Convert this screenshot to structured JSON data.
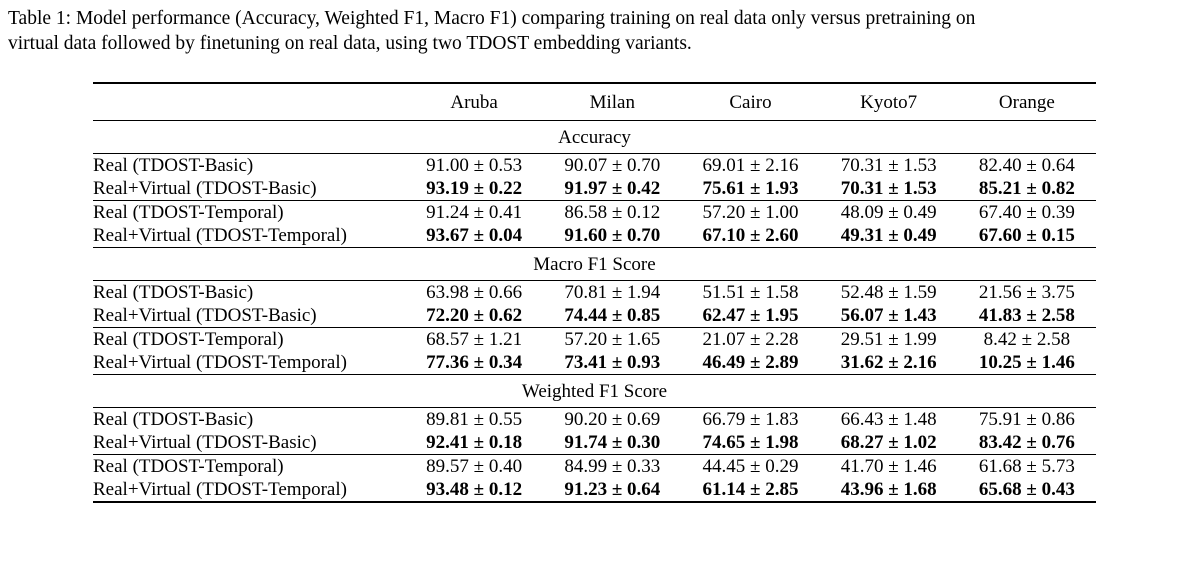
{
  "caption": {
    "line1": "Table 1: Model performance (Accuracy, Weighted F1, Macro F1) comparing training on real data only versus pretraining on",
    "line2": "virtual data followed by finetuning on real data, using two TDOST embedding variants."
  },
  "columns": [
    "Aruba",
    "Milan",
    "Cairo",
    "Kyoto7",
    "Orange"
  ],
  "sections": [
    {
      "title": "Accuracy",
      "groups": [
        [
          {
            "label": "Real (TDOST-Basic)",
            "values": [
              "91.00 ± 0.53",
              "90.07 ± 0.70",
              "69.01 ± 2.16",
              "70.31 ± 1.53",
              "82.40 ± 0.64"
            ]
          },
          {
            "label": "Real+Virtual (TDOST-Basic)",
            "values": [
              "93.19 ± 0.22",
              "91.97 ± 0.42",
              "75.61 ± 1.93",
              "70.31 ± 1.53",
              "85.21 ± 0.82"
            ]
          }
        ],
        [
          {
            "label": "Real (TDOST-Temporal)",
            "values": [
              "91.24 ± 0.41",
              "86.58 ± 0.12",
              "57.20 ± 1.00",
              "48.09 ± 0.49",
              "67.40 ± 0.39"
            ]
          },
          {
            "label": "Real+Virtual (TDOST-Temporal)",
            "values": [
              "93.67 ± 0.04",
              "91.60 ± 0.70",
              "67.10 ± 2.60",
              "49.31 ± 0.49",
              "67.60 ± 0.15"
            ]
          }
        ]
      ]
    },
    {
      "title": "Macro F1 Score",
      "groups": [
        [
          {
            "label": "Real (TDOST-Basic)",
            "values": [
              "63.98 ± 0.66",
              "70.81 ± 1.94",
              "51.51 ± 1.58",
              "52.48 ± 1.59",
              "21.56 ± 3.75"
            ]
          },
          {
            "label": "Real+Virtual (TDOST-Basic)",
            "values": [
              "72.20 ± 0.62",
              "74.44 ± 0.85",
              "62.47 ± 1.95",
              "56.07 ± 1.43",
              "41.83 ± 2.58"
            ]
          }
        ],
        [
          {
            "label": "Real (TDOST-Temporal)",
            "values": [
              "68.57 ± 1.21",
              "57.20 ± 1.65",
              "21.07 ± 2.28",
              "29.51 ± 1.99",
              "8.42 ± 2.58"
            ]
          },
          {
            "label": "Real+Virtual (TDOST-Temporal)",
            "values": [
              "77.36 ± 0.34",
              "73.41 ± 0.93",
              "46.49 ± 2.89",
              "31.62 ± 2.16",
              "10.25 ± 1.46"
            ]
          }
        ]
      ]
    },
    {
      "title": "Weighted F1 Score",
      "groups": [
        [
          {
            "label": "Real (TDOST-Basic)",
            "values": [
              "89.81 ± 0.55",
              "90.20 ± 0.69",
              "66.79 ± 1.83",
              "66.43 ± 1.48",
              "75.91 ± 0.86"
            ]
          },
          {
            "label": "Real+Virtual (TDOST-Basic)",
            "values": [
              "92.41 ± 0.18",
              "91.74 ± 0.30",
              "74.65 ± 1.98",
              "68.27 ± 1.02",
              "83.42 ± 0.76"
            ]
          }
        ],
        [
          {
            "label": "Real (TDOST-Temporal)",
            "values": [
              "89.57 ± 0.40",
              "84.99 ± 0.33",
              "44.45 ± 0.29",
              "41.70 ± 1.46",
              "61.68 ± 5.73"
            ]
          },
          {
            "label": "Real+Virtual (TDOST-Temporal)",
            "values": [
              "93.48 ± 0.12",
              "91.23 ± 0.64",
              "61.14 ± 2.85",
              "43.96 ± 1.68",
              "65.68 ± 0.43"
            ]
          }
        ]
      ]
    }
  ]
}
